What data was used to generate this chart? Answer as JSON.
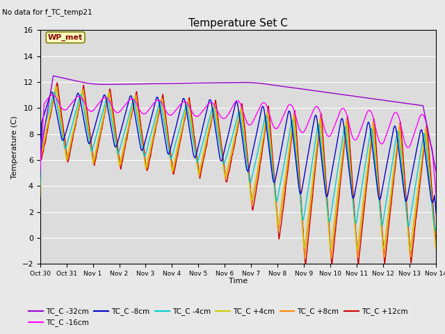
{
  "title": "Temperature Set C",
  "subtitle": "No data for f_TC_temp21",
  "xlabel": "Time",
  "ylabel": "Temperature (C)",
  "ylim": [
    -2,
    16
  ],
  "xlim": [
    0,
    15
  ],
  "x_tick_labels": [
    "Oct 30",
    "Oct 31",
    "Nov 1",
    "Nov 2",
    "Nov 3",
    "Nov 4",
    "Nov 5",
    "Nov 6",
    "Nov 7",
    "Nov 8",
    "Nov 9",
    "Nov 10",
    "Nov 11",
    "Nov 12",
    "Nov 13",
    "Nov 14"
  ],
  "wp_met_label": "WP_met",
  "background_color": "#e8e8e8",
  "plot_bg_color": "#dcdcdc",
  "legend_entries": [
    "TC_C -32cm",
    "TC_C -16cm",
    "TC_C -8cm",
    "TC_C -4cm",
    "TC_C +4cm",
    "TC_C +8cm",
    "TC_C +12cm"
  ],
  "line_colors": {
    "TC_C -32cm": "#9900cc",
    "TC_C -16cm": "#ff00ff",
    "TC_C -8cm": "#0000cc",
    "TC_C -4cm": "#00cccc",
    "TC_C +4cm": "#cccc00",
    "TC_C +8cm": "#ff8800",
    "TC_C +12cm": "#cc0000"
  },
  "yticks": [
    -2,
    0,
    2,
    4,
    6,
    8,
    10,
    12,
    14,
    16
  ]
}
